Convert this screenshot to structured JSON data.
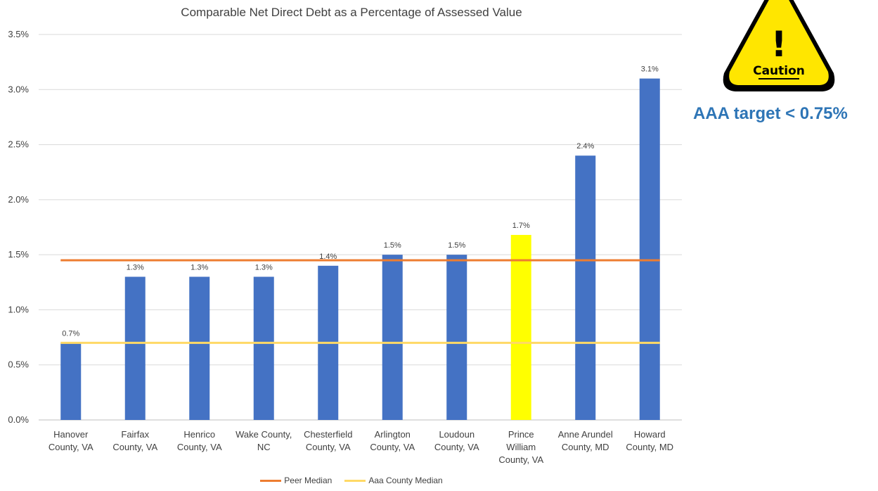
{
  "chart_data": {
    "type": "bar",
    "title": "Comparable Net Direct Debt as a Percentage of Assessed Value",
    "categories": [
      [
        "Hanover",
        "County, VA"
      ],
      [
        "Fairfax",
        "County, VA"
      ],
      [
        "Henrico",
        "County, VA"
      ],
      [
        "Wake County,",
        "NC"
      ],
      [
        "Chesterfield",
        "County, VA"
      ],
      [
        "Arlington",
        "County, VA"
      ],
      [
        "Loudoun",
        "County, VA"
      ],
      [
        "Prince",
        "William",
        "County, VA"
      ],
      [
        "Anne Arundel",
        "County, MD"
      ],
      [
        "Howard",
        "County, MD"
      ]
    ],
    "values": [
      0.7,
      1.3,
      1.3,
      1.3,
      1.4,
      1.5,
      1.5,
      1.68,
      2.4,
      3.1
    ],
    "data_labels": [
      "0.7%",
      "1.3%",
      "1.3%",
      "1.3%",
      "1.4%",
      "1.5%",
      "1.5%",
      "1.7%",
      "2.4%",
      "3.1%"
    ],
    "bar_colors": [
      "#4472c4",
      "#4472c4",
      "#4472c4",
      "#4472c4",
      "#4472c4",
      "#4472c4",
      "#4472c4",
      "#ffff00",
      "#4472c4",
      "#4472c4"
    ],
    "ylim": [
      0,
      3.5
    ],
    "yticks": [
      0,
      0.5,
      1.0,
      1.5,
      2.0,
      2.5,
      3.0,
      3.5
    ],
    "ytick_labels": [
      "0.0%",
      "0.5%",
      "1.0%",
      "1.5%",
      "2.0%",
      "2.5%",
      "3.0%",
      "3.5%"
    ],
    "grid": true,
    "legend_position": "bottom",
    "reference_lines": [
      {
        "name": "Peer Median",
        "value": 1.45,
        "color": "#ed7d31"
      },
      {
        "name": "Aaa County Median",
        "value": 0.7,
        "color": "#ffd966"
      }
    ]
  },
  "caution": {
    "label": "Caution",
    "mark": "!",
    "icon": "caution-warning-icon",
    "fill_color": "#ffe600"
  },
  "annotation": {
    "text": "AAA target < 0.75%",
    "color": "#2e75b6"
  }
}
